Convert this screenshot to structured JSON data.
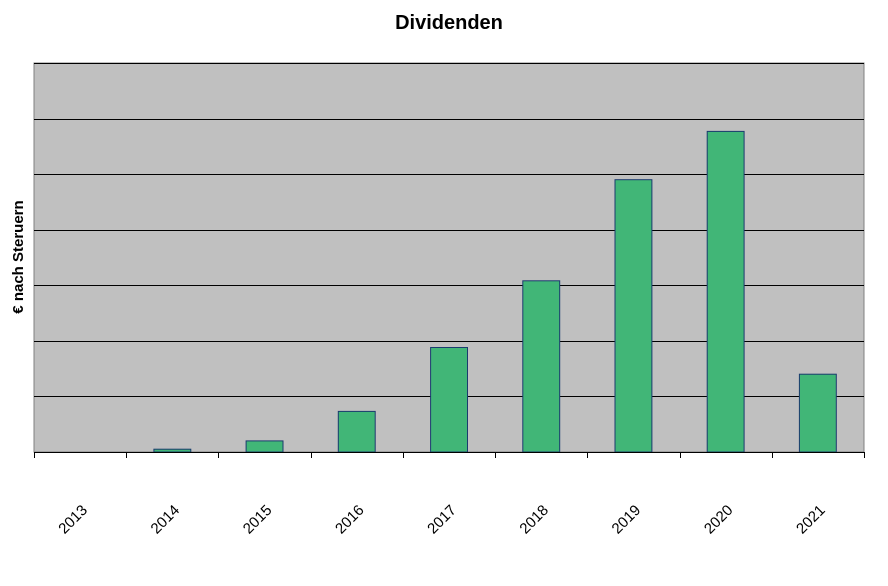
{
  "chart_data": {
    "type": "bar",
    "title": "Dividenden",
    "xlabel": "",
    "ylabel": "€ nach Steruern",
    "categories": [
      "2013",
      "2014",
      "2015",
      "2016",
      "2017",
      "2018",
      "2019",
      "2020",
      "2021"
    ],
    "values": [
      0,
      0.05,
      0.2,
      0.73,
      1.88,
      3.08,
      4.9,
      5.77,
      1.4
    ],
    "ylim": [
      0,
      7
    ],
    "y_gridlines": [
      1,
      2,
      3,
      4,
      5,
      6,
      7
    ],
    "grid": true,
    "y_tick_labels_shown": false,
    "legend": "none",
    "colors": {
      "plot_background": "#c0c0c0",
      "bar_fill": "#41b677",
      "bar_stroke": "#1a3a6e",
      "grid": "#000000"
    }
  }
}
